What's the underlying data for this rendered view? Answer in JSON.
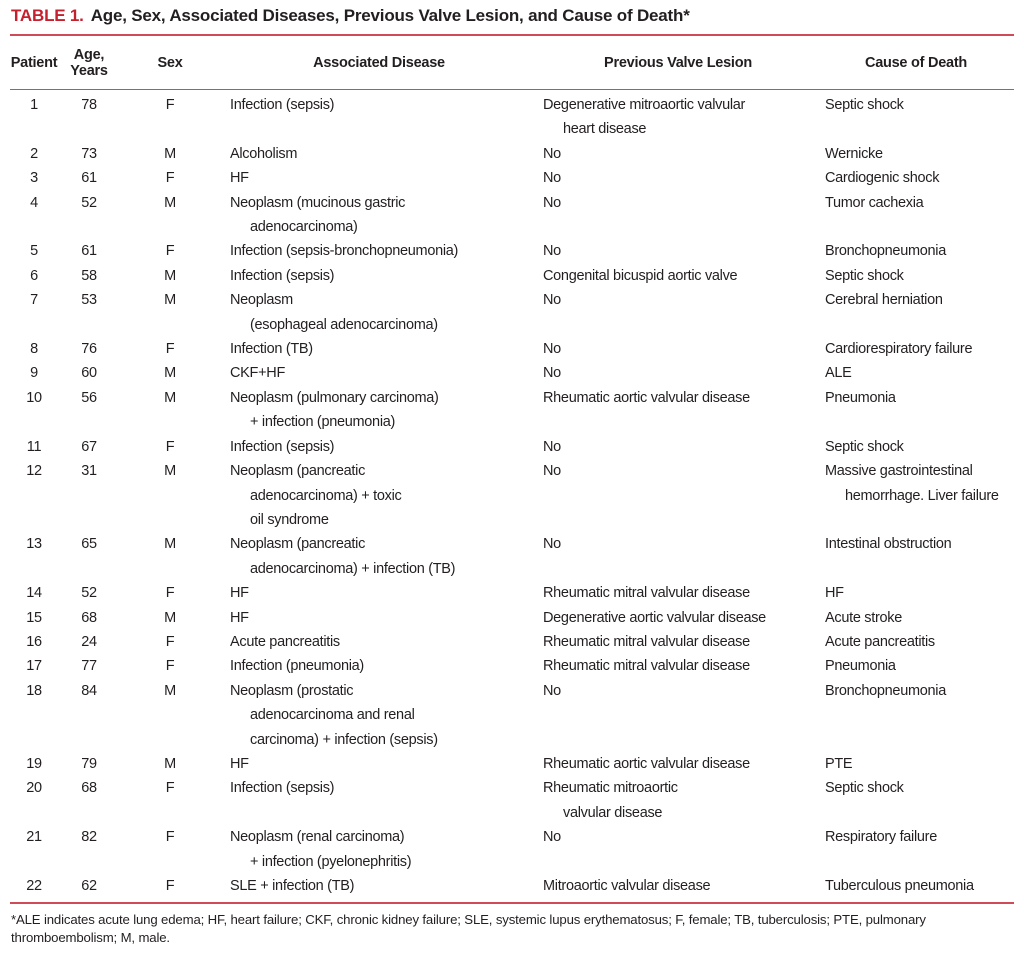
{
  "colors": {
    "accent_red": "#c5202e",
    "rule_red": "#d04a58",
    "text": "#231f20",
    "background": "#ffffff"
  },
  "table": {
    "label": "TABLE 1.",
    "title": "Age, Sex, Associated Diseases, Previous Valve Lesion, and Cause of Death*",
    "headers": {
      "patient": "Patient",
      "age_line1": "Age,",
      "age_line2": "Years",
      "sex": "Sex",
      "disease": "Associated Disease",
      "lesion": "Previous Valve Lesion",
      "death": "Cause of Death"
    },
    "rows": [
      {
        "patient": "1",
        "age": "78",
        "sex": "F",
        "disease": [
          "Infection (sepsis)"
        ],
        "lesion": [
          "Degenerative mitroaortic valvular",
          "heart disease"
        ],
        "death": [
          "Septic shock"
        ]
      },
      {
        "patient": "2",
        "age": "73",
        "sex": "M",
        "disease": [
          "Alcoholism"
        ],
        "lesion": [
          "No"
        ],
        "death": [
          "Wernicke"
        ]
      },
      {
        "patient": "3",
        "age": "61",
        "sex": "F",
        "disease": [
          "HF"
        ],
        "lesion": [
          "No"
        ],
        "death": [
          "Cardiogenic shock"
        ]
      },
      {
        "patient": "4",
        "age": "52",
        "sex": "M",
        "disease": [
          "Neoplasm (mucinous gastric",
          "adenocarcinoma)"
        ],
        "lesion": [
          "No"
        ],
        "death": [
          "Tumor cachexia"
        ]
      },
      {
        "patient": "5",
        "age": "61",
        "sex": "F",
        "disease": [
          "Infection (sepsis-bronchopneumonia)"
        ],
        "lesion": [
          "No"
        ],
        "death": [
          "Bronchopneumonia"
        ]
      },
      {
        "patient": "6",
        "age": "58",
        "sex": "M",
        "disease": [
          "Infection (sepsis)"
        ],
        "lesion": [
          "Congenital bicuspid aortic valve"
        ],
        "death": [
          "Septic shock"
        ]
      },
      {
        "patient": "7",
        "age": "53",
        "sex": "M",
        "disease": [
          "Neoplasm",
          "(esophageal adenocarcinoma)"
        ],
        "lesion": [
          "No"
        ],
        "death": [
          "Cerebral herniation"
        ]
      },
      {
        "patient": "8",
        "age": "76",
        "sex": "F",
        "disease": [
          "Infection (TB)"
        ],
        "lesion": [
          "No"
        ],
        "death": [
          "Cardiorespiratory failure"
        ]
      },
      {
        "patient": "9",
        "age": "60",
        "sex": "M",
        "disease": [
          "CKF+HF"
        ],
        "lesion": [
          "No"
        ],
        "death": [
          "ALE"
        ]
      },
      {
        "patient": "10",
        "age": "56",
        "sex": "M",
        "disease": [
          "Neoplasm (pulmonary carcinoma)",
          "+ infection (pneumonia)"
        ],
        "lesion": [
          "Rheumatic aortic valvular disease"
        ],
        "death": [
          "Pneumonia"
        ]
      },
      {
        "patient": "11",
        "age": "67",
        "sex": "F",
        "disease": [
          "Infection (sepsis)"
        ],
        "lesion": [
          "No"
        ],
        "death": [
          "Septic shock"
        ]
      },
      {
        "patient": "12",
        "age": "31",
        "sex": "M",
        "disease": [
          "Neoplasm (pancreatic",
          "adenocarcinoma) + toxic",
          "oil syndrome"
        ],
        "lesion": [
          "No"
        ],
        "death": [
          "Massive gastrointestinal",
          "hemorrhage. Liver failure"
        ]
      },
      {
        "patient": "13",
        "age": "65",
        "sex": "M",
        "disease": [
          "Neoplasm (pancreatic",
          "adenocarcinoma) + infection (TB)"
        ],
        "lesion": [
          "No"
        ],
        "death": [
          "Intestinal obstruction"
        ]
      },
      {
        "patient": "14",
        "age": "52",
        "sex": "F",
        "disease": [
          "HF"
        ],
        "lesion": [
          "Rheumatic mitral valvular disease"
        ],
        "death": [
          "HF"
        ]
      },
      {
        "patient": "15",
        "age": "68",
        "sex": "M",
        "disease": [
          "HF"
        ],
        "lesion": [
          "Degenerative aortic valvular disease"
        ],
        "death": [
          "Acute stroke"
        ]
      },
      {
        "patient": "16",
        "age": "24",
        "sex": "F",
        "disease": [
          "Acute pancreatitis"
        ],
        "lesion": [
          "Rheumatic mitral valvular disease"
        ],
        "death": [
          "Acute pancreatitis"
        ]
      },
      {
        "patient": "17",
        "age": "77",
        "sex": "F",
        "disease": [
          "Infection (pneumonia)"
        ],
        "lesion": [
          "Rheumatic mitral valvular disease"
        ],
        "death": [
          "Pneumonia"
        ]
      },
      {
        "patient": "18",
        "age": "84",
        "sex": "M",
        "disease": [
          "Neoplasm (prostatic",
          "adenocarcinoma and renal",
          "carcinoma) + infection (sepsis)"
        ],
        "lesion": [
          "No"
        ],
        "death": [
          "Bronchopneumonia"
        ]
      },
      {
        "patient": "19",
        "age": "79",
        "sex": "M",
        "disease": [
          "HF"
        ],
        "lesion": [
          "Rheumatic aortic valvular disease"
        ],
        "death": [
          "PTE"
        ]
      },
      {
        "patient": "20",
        "age": "68",
        "sex": "F",
        "disease": [
          "Infection (sepsis)"
        ],
        "lesion": [
          "Rheumatic mitroaortic",
          "valvular disease"
        ],
        "death": [
          "Septic shock"
        ]
      },
      {
        "patient": "21",
        "age": "82",
        "sex": "F",
        "disease": [
          "Neoplasm (renal carcinoma)",
          "+ infection (pyelonephritis)"
        ],
        "lesion": [
          "No"
        ],
        "death": [
          "Respiratory failure"
        ]
      },
      {
        "patient": "22",
        "age": "62",
        "sex": "F",
        "disease": [
          "SLE + infection (TB)"
        ],
        "lesion": [
          "Mitroaortic valvular disease"
        ],
        "death": [
          "Tuberculous pneumonia"
        ]
      }
    ],
    "footnote": "*ALE indicates acute lung edema; HF, heart failure; CKF, chronic kidney failure; SLE, systemic lupus erythematosus; F, female; TB, tuberculosis; PTE, pulmonary thromboembolism; M, male."
  }
}
